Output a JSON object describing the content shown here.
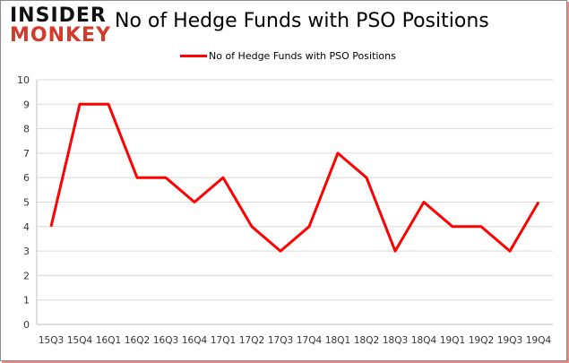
{
  "logo": {
    "line1": "INSIDER",
    "line2": "MONKEY"
  },
  "chart_data": {
    "type": "line",
    "title": "No of Hedge Funds with PSO Positions",
    "categories": [
      "15Q3",
      "15Q4",
      "16Q1",
      "16Q2",
      "16Q3",
      "16Q4",
      "17Q1",
      "17Q2",
      "17Q3",
      "17Q4",
      "18Q1",
      "18Q2",
      "18Q3",
      "18Q4",
      "19Q1",
      "19Q2",
      "19Q3",
      "19Q4"
    ],
    "series": [
      {
        "name": "No of Hedge Funds with PSO Positions",
        "values": [
          4,
          9,
          9,
          6,
          6,
          5,
          6,
          4,
          3,
          4,
          7,
          6,
          3,
          5,
          4,
          4,
          3,
          5
        ],
        "color": "#ff0000"
      }
    ],
    "ylim": [
      0,
      10
    ],
    "yticks": [
      0,
      1,
      2,
      3,
      4,
      5,
      6,
      7,
      8,
      9,
      10
    ],
    "grid": true,
    "legend": "top-center",
    "xlabel": "",
    "ylabel": ""
  }
}
